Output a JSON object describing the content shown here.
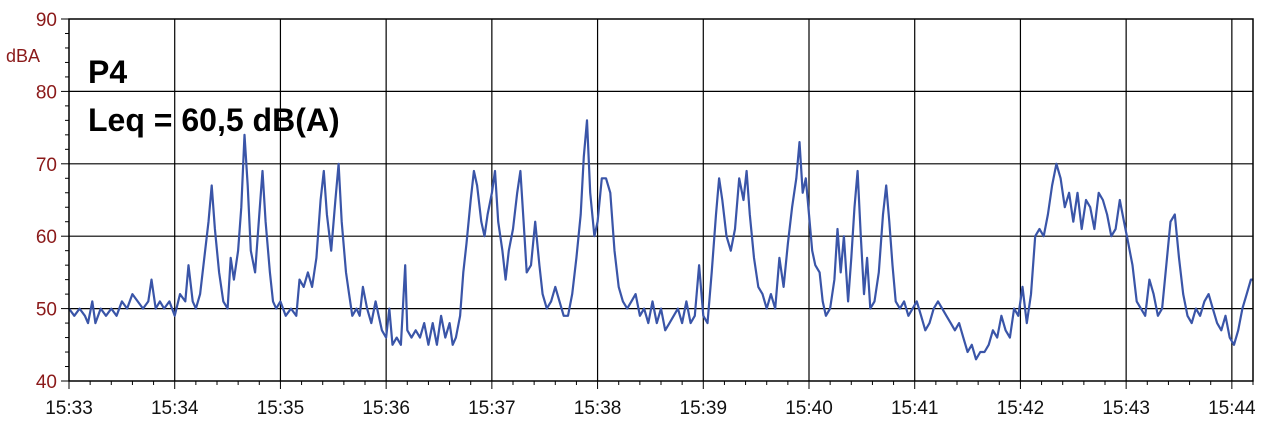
{
  "chart_data": {
    "type": "line",
    "ylabel": "dBA",
    "annotations": [
      "P4",
      "Leq = 60,5 dB(A)"
    ],
    "x_ticks": [
      "15:33",
      "15:34",
      "15:35",
      "15:36",
      "15:37",
      "15:38",
      "15:39",
      "15:40",
      "15:41",
      "15:42",
      "15:43",
      "15:44"
    ],
    "y_ticks": [
      40,
      50,
      60,
      70,
      80,
      90
    ],
    "ylim": [
      40,
      90
    ],
    "xlim_minutes": [
      0,
      11.2
    ],
    "grid": true,
    "series": [
      {
        "color": "#3a55a8",
        "points": [
          [
            0.0,
            50
          ],
          [
            0.05,
            49
          ],
          [
            0.1,
            50
          ],
          [
            0.15,
            49
          ],
          [
            0.18,
            48
          ],
          [
            0.22,
            51
          ],
          [
            0.25,
            48
          ],
          [
            0.3,
            50
          ],
          [
            0.35,
            49
          ],
          [
            0.4,
            50
          ],
          [
            0.45,
            49
          ],
          [
            0.5,
            51
          ],
          [
            0.55,
            50
          ],
          [
            0.6,
            52
          ],
          [
            0.65,
            51
          ],
          [
            0.7,
            50
          ],
          [
            0.75,
            51
          ],
          [
            0.78,
            54
          ],
          [
            0.82,
            50
          ],
          [
            0.86,
            51
          ],
          [
            0.9,
            50
          ],
          [
            0.95,
            51
          ],
          [
            1.0,
            49
          ],
          [
            1.05,
            52
          ],
          [
            1.1,
            51
          ],
          [
            1.13,
            56
          ],
          [
            1.17,
            51
          ],
          [
            1.2,
            50
          ],
          [
            1.24,
            52
          ],
          [
            1.28,
            57
          ],
          [
            1.32,
            62
          ],
          [
            1.35,
            67
          ],
          [
            1.38,
            61
          ],
          [
            1.42,
            55
          ],
          [
            1.46,
            51
          ],
          [
            1.5,
            50
          ],
          [
            1.53,
            57
          ],
          [
            1.56,
            54
          ],
          [
            1.6,
            58
          ],
          [
            1.63,
            64
          ],
          [
            1.66,
            74
          ],
          [
            1.69,
            67
          ],
          [
            1.72,
            58
          ],
          [
            1.76,
            55
          ],
          [
            1.8,
            63
          ],
          [
            1.83,
            69
          ],
          [
            1.86,
            62
          ],
          [
            1.9,
            55
          ],
          [
            1.93,
            51
          ],
          [
            1.96,
            50
          ],
          [
            2.0,
            51
          ],
          [
            2.05,
            49
          ],
          [
            2.1,
            50
          ],
          [
            2.15,
            49
          ],
          [
            2.18,
            54
          ],
          [
            2.22,
            53
          ],
          [
            2.26,
            55
          ],
          [
            2.3,
            53
          ],
          [
            2.34,
            57
          ],
          [
            2.38,
            65
          ],
          [
            2.41,
            69
          ],
          [
            2.44,
            63
          ],
          [
            2.48,
            58
          ],
          [
            2.52,
            65
          ],
          [
            2.55,
            70
          ],
          [
            2.58,
            62
          ],
          [
            2.62,
            55
          ],
          [
            2.65,
            52
          ],
          [
            2.68,
            49
          ],
          [
            2.72,
            50
          ],
          [
            2.75,
            49
          ],
          [
            2.78,
            53
          ],
          [
            2.82,
            50
          ],
          [
            2.86,
            48
          ],
          [
            2.9,
            51
          ],
          [
            2.93,
            49
          ],
          [
            2.96,
            47
          ],
          [
            3.0,
            46
          ],
          [
            3.03,
            50
          ],
          [
            3.06,
            45
          ],
          [
            3.1,
            46
          ],
          [
            3.14,
            45
          ],
          [
            3.18,
            56
          ],
          [
            3.2,
            47
          ],
          [
            3.24,
            46
          ],
          [
            3.28,
            47
          ],
          [
            3.32,
            46
          ],
          [
            3.36,
            48
          ],
          [
            3.4,
            45
          ],
          [
            3.44,
            48
          ],
          [
            3.48,
            45
          ],
          [
            3.52,
            49
          ],
          [
            3.56,
            46
          ],
          [
            3.6,
            48
          ],
          [
            3.63,
            45
          ],
          [
            3.66,
            46
          ],
          [
            3.7,
            49
          ],
          [
            3.73,
            55
          ],
          [
            3.76,
            59
          ],
          [
            3.8,
            65
          ],
          [
            3.83,
            69
          ],
          [
            3.86,
            67
          ],
          [
            3.9,
            62
          ],
          [
            3.93,
            60
          ],
          [
            3.96,
            63
          ],
          [
            4.0,
            66
          ],
          [
            4.03,
            69
          ],
          [
            4.06,
            62
          ],
          [
            4.1,
            58
          ],
          [
            4.13,
            54
          ],
          [
            4.16,
            58
          ],
          [
            4.2,
            61
          ],
          [
            4.24,
            66
          ],
          [
            4.27,
            69
          ],
          [
            4.3,
            62
          ],
          [
            4.33,
            55
          ],
          [
            4.37,
            56
          ],
          [
            4.41,
            62
          ],
          [
            4.45,
            56
          ],
          [
            4.48,
            52
          ],
          [
            4.52,
            50
          ],
          [
            4.56,
            51
          ],
          [
            4.6,
            53
          ],
          [
            4.64,
            51
          ],
          [
            4.68,
            49
          ],
          [
            4.72,
            49
          ],
          [
            4.76,
            52
          ],
          [
            4.8,
            57
          ],
          [
            4.84,
            63
          ],
          [
            4.87,
            71
          ],
          [
            4.9,
            76
          ],
          [
            4.93,
            66
          ],
          [
            4.97,
            60
          ],
          [
            5.0,
            62
          ],
          [
            5.04,
            68
          ],
          [
            5.08,
            68
          ],
          [
            5.12,
            66
          ],
          [
            5.16,
            58
          ],
          [
            5.2,
            53
          ],
          [
            5.24,
            51
          ],
          [
            5.28,
            50
          ],
          [
            5.32,
            51
          ],
          [
            5.36,
            52
          ],
          [
            5.4,
            49
          ],
          [
            5.44,
            50
          ],
          [
            5.48,
            48
          ],
          [
            5.52,
            51
          ],
          [
            5.56,
            48
          ],
          [
            5.6,
            50
          ],
          [
            5.64,
            47
          ],
          [
            5.68,
            48
          ],
          [
            5.72,
            49
          ],
          [
            5.76,
            50
          ],
          [
            5.8,
            48
          ],
          [
            5.84,
            51
          ],
          [
            5.88,
            48
          ],
          [
            5.92,
            49
          ],
          [
            5.96,
            56
          ],
          [
            6.0,
            49
          ],
          [
            6.04,
            48
          ],
          [
            6.08,
            55
          ],
          [
            6.12,
            63
          ],
          [
            6.15,
            68
          ],
          [
            6.18,
            65
          ],
          [
            6.22,
            60
          ],
          [
            6.26,
            58
          ],
          [
            6.3,
            61
          ],
          [
            6.34,
            68
          ],
          [
            6.38,
            65
          ],
          [
            6.41,
            69
          ],
          [
            6.44,
            63
          ],
          [
            6.48,
            57
          ],
          [
            6.52,
            53
          ],
          [
            6.56,
            52
          ],
          [
            6.6,
            50
          ],
          [
            6.64,
            52
          ],
          [
            6.68,
            50
          ],
          [
            6.72,
            57
          ],
          [
            6.76,
            53
          ],
          [
            6.8,
            59
          ],
          [
            6.84,
            64
          ],
          [
            6.88,
            68
          ],
          [
            6.91,
            73
          ],
          [
            6.94,
            66
          ],
          [
            6.97,
            68
          ],
          [
            7.0,
            63
          ],
          [
            7.03,
            58
          ],
          [
            7.06,
            56
          ],
          [
            7.1,
            55
          ],
          [
            7.13,
            51
          ],
          [
            7.16,
            49
          ],
          [
            7.2,
            50
          ],
          [
            7.24,
            54
          ],
          [
            7.27,
            61
          ],
          [
            7.3,
            55
          ],
          [
            7.33,
            60
          ],
          [
            7.37,
            51
          ],
          [
            7.4,
            57
          ],
          [
            7.43,
            64
          ],
          [
            7.46,
            69
          ],
          [
            7.49,
            60
          ],
          [
            7.52,
            52
          ],
          [
            7.55,
            57
          ],
          [
            7.58,
            50
          ],
          [
            7.62,
            51
          ],
          [
            7.66,
            55
          ],
          [
            7.7,
            63
          ],
          [
            7.73,
            67
          ],
          [
            7.76,
            62
          ],
          [
            7.79,
            56
          ],
          [
            7.82,
            51
          ],
          [
            7.86,
            50
          ],
          [
            7.9,
            51
          ],
          [
            7.94,
            49
          ],
          [
            7.98,
            50
          ],
          [
            8.02,
            51
          ],
          [
            8.06,
            49
          ],
          [
            8.1,
            47
          ],
          [
            8.14,
            48
          ],
          [
            8.18,
            50
          ],
          [
            8.22,
            51
          ],
          [
            8.26,
            50
          ],
          [
            8.3,
            49
          ],
          [
            8.34,
            48
          ],
          [
            8.38,
            47
          ],
          [
            8.42,
            48
          ],
          [
            8.46,
            46
          ],
          [
            8.5,
            44
          ],
          [
            8.54,
            45
          ],
          [
            8.58,
            43
          ],
          [
            8.62,
            44
          ],
          [
            8.66,
            44
          ],
          [
            8.7,
            45
          ],
          [
            8.74,
            47
          ],
          [
            8.78,
            46
          ],
          [
            8.82,
            49
          ],
          [
            8.86,
            47
          ],
          [
            8.9,
            46
          ],
          [
            8.94,
            50
          ],
          [
            8.98,
            49
          ],
          [
            9.02,
            53
          ],
          [
            9.06,
            48
          ],
          [
            9.1,
            52
          ],
          [
            9.14,
            60
          ],
          [
            9.18,
            61
          ],
          [
            9.22,
            60
          ],
          [
            9.26,
            63
          ],
          [
            9.3,
            67
          ],
          [
            9.34,
            70
          ],
          [
            9.38,
            68
          ],
          [
            9.42,
            64
          ],
          [
            9.46,
            66
          ],
          [
            9.5,
            62
          ],
          [
            9.54,
            66
          ],
          [
            9.58,
            61
          ],
          [
            9.62,
            65
          ],
          [
            9.66,
            64
          ],
          [
            9.7,
            61
          ],
          [
            9.74,
            66
          ],
          [
            9.78,
            65
          ],
          [
            9.82,
            63
          ],
          [
            9.86,
            60
          ],
          [
            9.9,
            61
          ],
          [
            9.94,
            65
          ],
          [
            9.98,
            62
          ],
          [
            10.02,
            59
          ],
          [
            10.06,
            56
          ],
          [
            10.1,
            51
          ],
          [
            10.14,
            50
          ],
          [
            10.18,
            49
          ],
          [
            10.22,
            54
          ],
          [
            10.26,
            52
          ],
          [
            10.3,
            49
          ],
          [
            10.34,
            50
          ],
          [
            10.38,
            56
          ],
          [
            10.42,
            62
          ],
          [
            10.46,
            63
          ],
          [
            10.5,
            57
          ],
          [
            10.54,
            52
          ],
          [
            10.58,
            49
          ],
          [
            10.62,
            48
          ],
          [
            10.66,
            50
          ],
          [
            10.7,
            49
          ],
          [
            10.74,
            51
          ],
          [
            10.78,
            52
          ],
          [
            10.82,
            50
          ],
          [
            10.86,
            48
          ],
          [
            10.9,
            47
          ],
          [
            10.94,
            49
          ],
          [
            10.98,
            46
          ],
          [
            11.02,
            45
          ],
          [
            11.06,
            47
          ],
          [
            11.1,
            50
          ],
          [
            11.14,
            52
          ],
          [
            11.18,
            54
          ],
          [
            11.2,
            54
          ]
        ]
      }
    ]
  }
}
